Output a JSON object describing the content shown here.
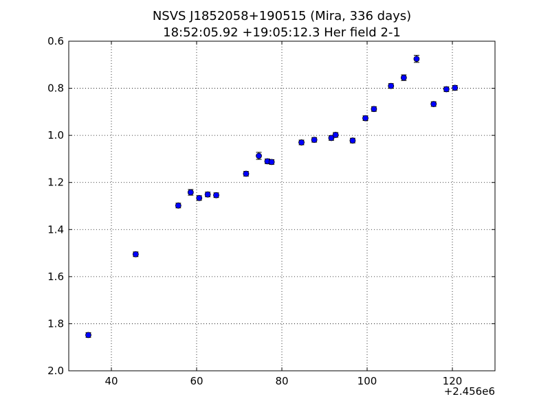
{
  "chart_data": {
    "type": "scatter",
    "title": "NSVS J1852058+190515 (Mira, 336 days)",
    "subtitle": "18:52:05.92 +19:05:12.3 Her field 2-1",
    "xlabel": "",
    "ylabel": "",
    "x_offset_label": "+2.456e6",
    "xlim": [
      30,
      130
    ],
    "ylim": [
      0.6,
      2.0
    ],
    "y_inverted": true,
    "grid": true,
    "grid_style": "dotted",
    "marker_color": "#0000ff",
    "x_ticks": [
      {
        "value": 40,
        "label": "40"
      },
      {
        "value": 60,
        "label": "60"
      },
      {
        "value": 80,
        "label": "80"
      },
      {
        "value": 100,
        "label": "100"
      },
      {
        "value": 120,
        "label": "120"
      }
    ],
    "y_ticks": [
      {
        "value": 0.6,
        "label": "0.6"
      },
      {
        "value": 0.8,
        "label": "0.8"
      },
      {
        "value": 1.0,
        "label": "1.0"
      },
      {
        "value": 1.2,
        "label": "1.2"
      },
      {
        "value": 1.4,
        "label": "1.4"
      },
      {
        "value": 1.6,
        "label": "1.6"
      },
      {
        "value": 1.8,
        "label": "1.8"
      },
      {
        "value": 2.0,
        "label": "2.0"
      }
    ],
    "points": [
      {
        "x": 34.6,
        "y": 1.848,
        "err": 0.01
      },
      {
        "x": 45.7,
        "y": 1.505,
        "err": 0.01
      },
      {
        "x": 55.7,
        "y": 1.298,
        "err": 0.01
      },
      {
        "x": 58.6,
        "y": 1.242,
        "err": 0.012
      },
      {
        "x": 60.6,
        "y": 1.266,
        "err": 0.01
      },
      {
        "x": 62.6,
        "y": 1.251,
        "err": 0.01
      },
      {
        "x": 64.6,
        "y": 1.254,
        "err": 0.01
      },
      {
        "x": 71.6,
        "y": 1.163,
        "err": 0.01
      },
      {
        "x": 74.6,
        "y": 1.087,
        "err": 0.015
      },
      {
        "x": 76.6,
        "y": 1.11,
        "err": 0.01
      },
      {
        "x": 77.6,
        "y": 1.113,
        "err": 0.01
      },
      {
        "x": 84.6,
        "y": 1.03,
        "err": 0.01
      },
      {
        "x": 87.6,
        "y": 1.019,
        "err": 0.01
      },
      {
        "x": 91.6,
        "y": 1.011,
        "err": 0.01
      },
      {
        "x": 92.6,
        "y": 0.998,
        "err": 0.01
      },
      {
        "x": 96.6,
        "y": 1.022,
        "err": 0.01
      },
      {
        "x": 99.6,
        "y": 0.927,
        "err": 0.01
      },
      {
        "x": 101.6,
        "y": 0.888,
        "err": 0.01
      },
      {
        "x": 105.6,
        "y": 0.79,
        "err": 0.01
      },
      {
        "x": 108.6,
        "y": 0.755,
        "err": 0.012
      },
      {
        "x": 111.6,
        "y": 0.675,
        "err": 0.015
      },
      {
        "x": 115.6,
        "y": 0.867,
        "err": 0.01
      },
      {
        "x": 118.6,
        "y": 0.804,
        "err": 0.01
      },
      {
        "x": 120.6,
        "y": 0.798,
        "err": 0.01
      }
    ]
  }
}
